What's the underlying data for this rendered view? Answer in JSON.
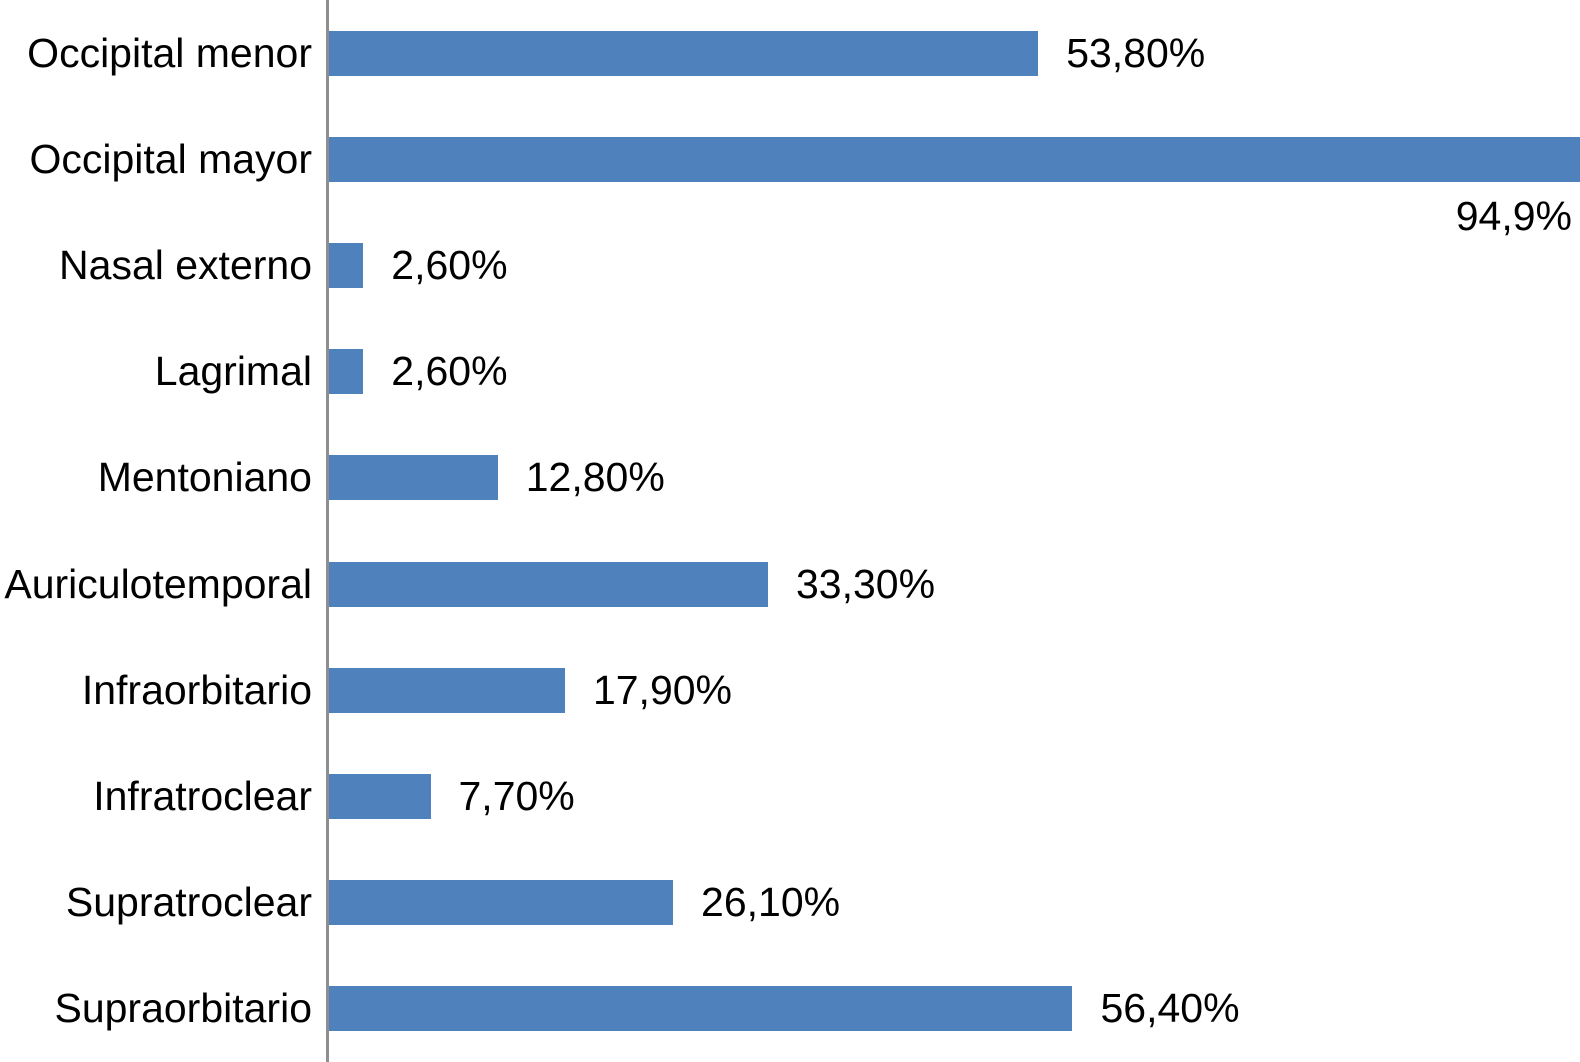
{
  "chart_data": {
    "type": "bar",
    "orientation": "horizontal",
    "title": "",
    "xlabel": "",
    "ylabel": "",
    "grid": false,
    "legend": false,
    "xlim": [
      0,
      94.9
    ],
    "bar_color": "#4F81BD",
    "axis_line_color": "#8E8E8E",
    "categories": [
      "Occipital menor",
      "Occipital mayor",
      "Nasal externo",
      "Lagrimal",
      "Mentoniano",
      "Auriculotemporal",
      "Infraorbitario",
      "Infratroclear",
      "Supratroclear",
      "Supraorbitario"
    ],
    "values": [
      53.8,
      94.9,
      2.6,
      2.6,
      12.8,
      33.3,
      17.9,
      7.7,
      26.1,
      56.4
    ],
    "value_labels": [
      "53,80%",
      "94,9%",
      "2,60%",
      "2,60%",
      "12,80%",
      "33,30%",
      "17,90%",
      "7,70%",
      "26,10%",
      "56,40%"
    ],
    "value_label_below_bar": [
      false,
      true,
      false,
      false,
      false,
      false,
      false,
      false,
      false,
      false
    ]
  }
}
